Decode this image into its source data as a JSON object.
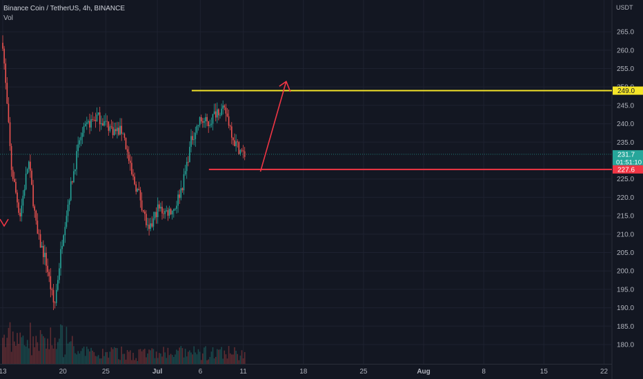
{
  "header": {
    "symbol": "Binance Coin / TetherUS, 4h, BINANCE",
    "volume_label": "Vol"
  },
  "colors": {
    "background": "#131722",
    "grid": "#1e2230",
    "up": "#26a69a",
    "down": "#ef5350",
    "resistance": "#f5e529",
    "support": "#f23645",
    "arrow": "#f23645",
    "current_price": "#26a69a",
    "axis_text": "#b2b5be"
  },
  "chart_data": {
    "type": "candlestick",
    "title": "Binance Coin / TetherUS, 4h, BINANCE",
    "y_axis_unit": "USDT",
    "y_range": [
      176.0,
      268.0
    ],
    "y_ticks": [
      180.0,
      185.0,
      190.0,
      195.0,
      200.0,
      205.0,
      210.0,
      215.0,
      220.0,
      225.0,
      235.0,
      240.0,
      245.0,
      250.0,
      255.0,
      260.0,
      265.0
    ],
    "x_ticks": [
      "13",
      "20",
      "25",
      "Jul",
      "6",
      "11",
      "18",
      "25",
      "Aug",
      "8",
      "15",
      "22"
    ],
    "price_path": [
      {
        "date": "Jun 13",
        "price": 262
      },
      {
        "date": "Jun 14",
        "price": 228
      },
      {
        "date": "Jun 15",
        "price": 215
      },
      {
        "date": "Jun 16",
        "price": 230
      },
      {
        "date": "Jun 17",
        "price": 210
      },
      {
        "date": "Jun 18",
        "price": 203
      },
      {
        "date": "Jun 19",
        "price": 190
      },
      {
        "date": "Jun 20",
        "price": 210
      },
      {
        "date": "Jun 21",
        "price": 224
      },
      {
        "date": "Jun 22",
        "price": 236
      },
      {
        "date": "Jun 23",
        "price": 240
      },
      {
        "date": "Jun 24",
        "price": 242
      },
      {
        "date": "Jun 25",
        "price": 240
      },
      {
        "date": "Jun 26",
        "price": 238
      },
      {
        "date": "Jun 27",
        "price": 238
      },
      {
        "date": "Jun 28",
        "price": 226
      },
      {
        "date": "Jun 29",
        "price": 220
      },
      {
        "date": "Jun 30",
        "price": 210
      },
      {
        "date": "Jul 1",
        "price": 217
      },
      {
        "date": "Jul 2",
        "price": 216
      },
      {
        "date": "Jul 3",
        "price": 217
      },
      {
        "date": "Jul 4",
        "price": 224
      },
      {
        "date": "Jul 5",
        "price": 236
      },
      {
        "date": "Jul 6",
        "price": 241
      },
      {
        "date": "Jul 7",
        "price": 240
      },
      {
        "date": "Jul 8",
        "price": 244
      },
      {
        "date": "Jul 9",
        "price": 243
      },
      {
        "date": "Jul 10",
        "price": 235
      },
      {
        "date": "Jul 11",
        "price": 231.7
      }
    ],
    "lines": {
      "resistance": {
        "price": 249.0,
        "label": "249.0",
        "from_date": "Jul 5"
      },
      "support": {
        "price": 227.6,
        "label": "227.6",
        "from_date": "Jul 7"
      }
    },
    "current_price": {
      "price": 231.7,
      "label": "231.7",
      "countdown": "01:51:10"
    },
    "projection_arrow": {
      "points": [
        {
          "date": "Jul 13",
          "price": 227.0
        },
        {
          "date": "Jul 16",
          "price": 251.5
        }
      ],
      "direction": "up"
    },
    "volume": {
      "shown": true,
      "label": "Vol"
    }
  }
}
